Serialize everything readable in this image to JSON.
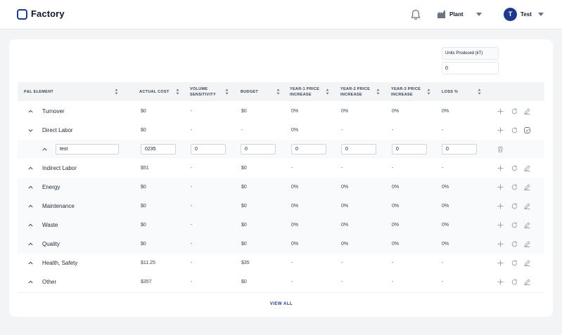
{
  "app": {
    "title": "Factory"
  },
  "header": {
    "plant_label": "Plant",
    "user_initial": "T",
    "user_name": "Test"
  },
  "units": {
    "label": "Units Produced (kT)",
    "value": "0"
  },
  "table": {
    "columns": [
      {
        "id": "element",
        "label": "P&L ELEMENT"
      },
      {
        "id": "actual",
        "label": "ACTUAL COST"
      },
      {
        "id": "vol_l1",
        "label": "VOLUME"
      },
      {
        "id": "vol_l2",
        "label": "SENSITIVITY"
      },
      {
        "id": "budget",
        "label": "BUDGET"
      },
      {
        "id": "y1_l1",
        "label": "YEAR-1 PRICE"
      },
      {
        "id": "y1_l2",
        "label": "INCREASE"
      },
      {
        "id": "y2_l1",
        "label": "YEAR-2 PRICE"
      },
      {
        "id": "y2_l2",
        "label": "INCREASE"
      },
      {
        "id": "y3_l1",
        "label": "YEAR-3 PRICE"
      },
      {
        "id": "y3_l2",
        "label": "INCREASE"
      },
      {
        "id": "loss",
        "label": "LOSS %"
      }
    ],
    "rows": [
      {
        "label": "Turnover",
        "actual": "$0",
        "volume": "-",
        "budget": "$0",
        "y1": "0%",
        "y2": "0%",
        "y3": "0%",
        "loss": "0%"
      },
      {
        "label": "Direct Labor",
        "actual": "$0",
        "volume": "-",
        "budget": "-",
        "y1": "0%",
        "y2": "-",
        "y3": "-",
        "loss": "-"
      },
      {
        "label": "Indirect Labor",
        "actual": "$51",
        "volume": "-",
        "budget": "$0",
        "y1": "-",
        "y2": "-",
        "y3": "-",
        "loss": "-"
      },
      {
        "label": "Energy",
        "actual": "$0",
        "volume": "-",
        "budget": "$0",
        "y1": "0%",
        "y2": "0%",
        "y3": "0%",
        "loss": "0%"
      },
      {
        "label": "Maintenance",
        "actual": "$0",
        "volume": "-",
        "budget": "$0",
        "y1": "0%",
        "y2": "0%",
        "y3": "0%",
        "loss": "0%"
      },
      {
        "label": "Waste",
        "actual": "$0",
        "volume": "-",
        "budget": "$0",
        "y1": "0%",
        "y2": "0%",
        "y3": "0%",
        "loss": "0%"
      },
      {
        "label": "Quality",
        "actual": "$0",
        "volume": "-",
        "budget": "$0",
        "y1": "0%",
        "y2": "0%",
        "y3": "0%",
        "loss": "0%"
      },
      {
        "label": "Health, Safety",
        "actual": "$11.25",
        "volume": "-",
        "budget": "$35",
        "y1": "-",
        "y2": "-",
        "y3": "-",
        "loss": "-"
      },
      {
        "label": "Other",
        "actual": "$357",
        "volume": "-",
        "budget": "$0",
        "y1": "-",
        "y2": "-",
        "y3": "-",
        "loss": "-"
      }
    ],
    "subrow": {
      "name": "test",
      "actual": "0235",
      "volume": "0",
      "budget": "0",
      "y1": "0",
      "y2": "0",
      "y3": "0",
      "loss": "0"
    }
  },
  "footer": {
    "view_all": "VIEW ALL"
  },
  "icons": {
    "logo": "square-logo-icon",
    "bell": "bell-icon",
    "plant": "factory-icon",
    "add": "plus-icon",
    "refresh": "refresh-icon",
    "edit": "pencil-icon",
    "confirm": "check-circle-icon",
    "delete": "trash-icon",
    "sort": "sort-icon"
  },
  "colors": {
    "brand": "#1e3a8a",
    "muted": "#9ca3af"
  }
}
